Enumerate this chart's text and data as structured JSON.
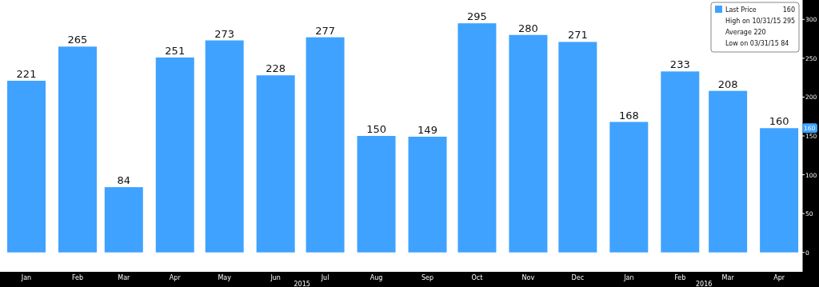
{
  "chart_data": {
    "type": "bar",
    "x": [
      "2015-01",
      "2015-02",
      "2015-03",
      "2015-04",
      "2015-05",
      "2015-06",
      "2015-07",
      "2015-08",
      "2015-09",
      "2015-10",
      "2015-11",
      "2015-12",
      "2016-01",
      "2016-02",
      "2016-03",
      "2016-04"
    ],
    "xlim": [
      "2014-12-16",
      "2016-04-15"
    ],
    "xticks": [
      {
        "value": "2015-01",
        "label": "Jan"
      },
      {
        "value": "2015-02",
        "label": "Feb"
      },
      {
        "value": "2015-03",
        "label": "Mar"
      },
      {
        "value": "2015-04",
        "label": "Apr"
      },
      {
        "value": "2015-05",
        "label": "May"
      },
      {
        "value": "2015-06",
        "label": "Jun"
      },
      {
        "value": "2015-07",
        "label": "Jul"
      },
      {
        "value": "2015-08",
        "label": "Aug"
      },
      {
        "value": "2015-09",
        "label": "Sep"
      },
      {
        "value": "2015-10",
        "label": "Oct"
      },
      {
        "value": "2015-11",
        "label": "Nov"
      },
      {
        "value": "2015-12",
        "label": "Dec"
      },
      {
        "value": "2016-01",
        "label": "Jan"
      },
      {
        "value": "2016-02",
        "label": "Feb"
      },
      {
        "value": "2016-03",
        "label": "Mar"
      },
      {
        "value": "2016-04",
        "label": "Apr"
      }
    ],
    "series": [
      {
        "name": "Last Price",
        "color": "#3fa2ff",
        "values": [
          221,
          265,
          84,
          251,
          273,
          228,
          277,
          150,
          149,
          295,
          280,
          271,
          168,
          233,
          208,
          160
        ]
      }
    ],
    "ylim": [
      -25,
      325
    ],
    "yticks": [
      0,
      50,
      100,
      150,
      200,
      250,
      300
    ],
    "data_labels": true,
    "legend": "top right",
    "annotations": [
      "160",
      "High on 10/31/15 295",
      "Average 220",
      "Low on 03/31/15 84",
      "2015",
      "2016",
      {
        "text": "160",
        "y": 160
      }
    ]
  }
}
